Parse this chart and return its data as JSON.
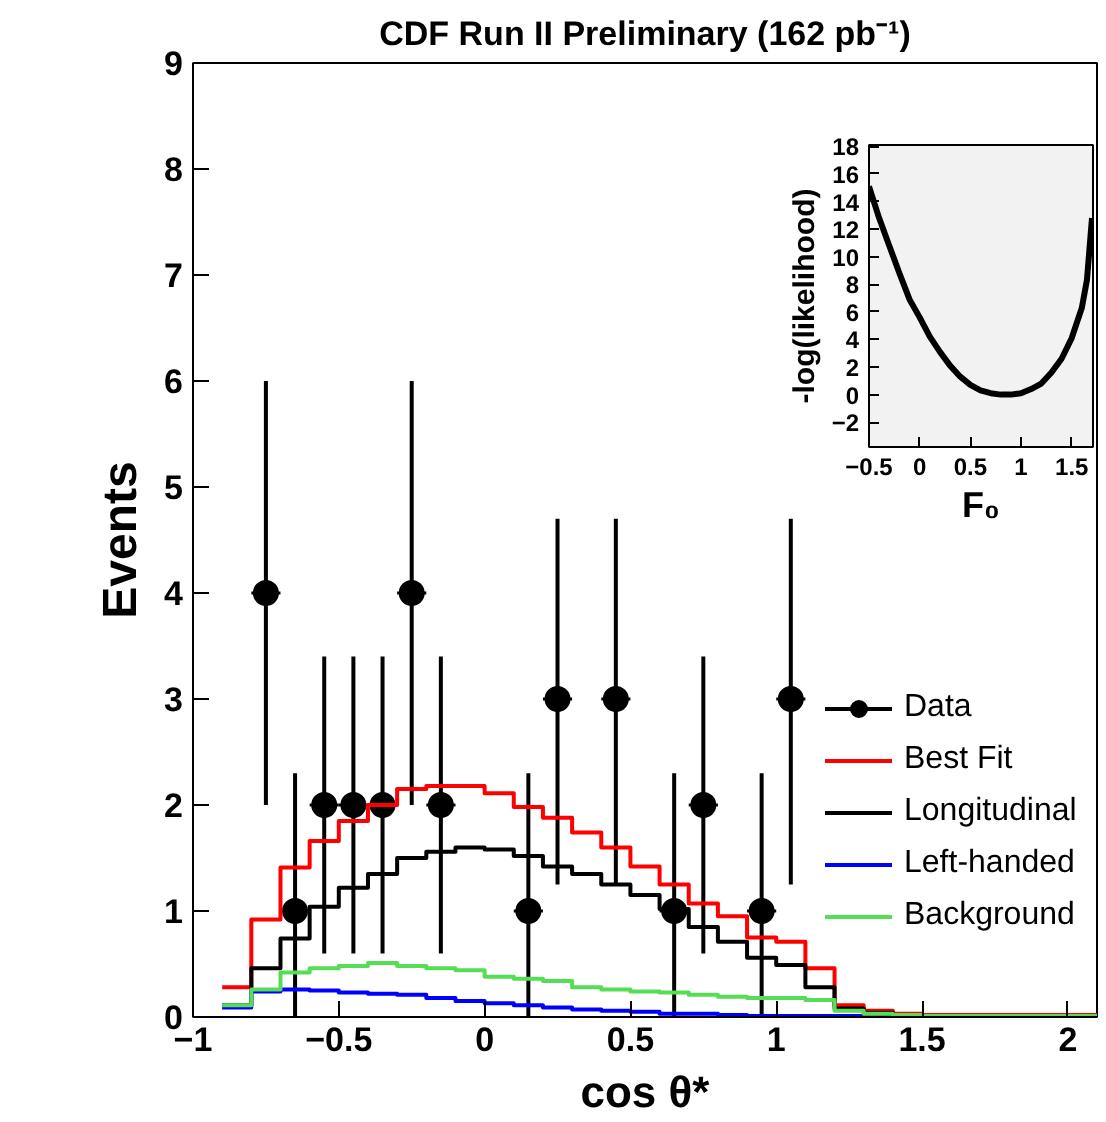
{
  "chart_data": [
    {
      "type": "histogram",
      "title": "CDF Run II Preliminary (162 pb⁻¹)",
      "xlabel": "cos θ*",
      "ylabel": "Events",
      "bins": [
        -0.9,
        -0.8,
        -0.7,
        -0.6,
        -0.5,
        -0.4,
        -0.3,
        -0.2,
        -0.1,
        0,
        0.1,
        0.2,
        0.3,
        0.4,
        0.5,
        0.6,
        0.7,
        0.8,
        0.9,
        1.0,
        1.1,
        1.2,
        1.3,
        1.4,
        1.5,
        1.6,
        1.7,
        1.8,
        1.9,
        2.0,
        2.1
      ],
      "series": [
        {
          "type": "scatter",
          "name": "Data",
          "color": "#000000",
          "marker": "circle",
          "x": [
            -0.75,
            -0.65,
            -0.55,
            -0.45,
            -0.35,
            -0.25,
            -0.15,
            0.15,
            0.25,
            0.45,
            0.65,
            0.75,
            0.95,
            1.05
          ],
          "values": [
            4,
            1,
            2,
            2,
            2,
            4,
            2,
            1,
            3,
            3,
            1,
            2,
            1,
            3
          ],
          "errors": [
            [
              2.0,
              6.0
            ],
            [
              0,
              2.3
            ],
            [
              0.6,
              3.4
            ],
            [
              0.6,
              3.4
            ],
            [
              0.6,
              3.4
            ],
            [
              2.0,
              6.0
            ],
            [
              0.6,
              3.4
            ],
            [
              0,
              2.3
            ],
            [
              1.25,
              4.7
            ],
            [
              1.25,
              4.7
            ],
            [
              0,
              2.3
            ],
            [
              0.6,
              3.4
            ],
            [
              0,
              2.3
            ],
            [
              1.25,
              4.7
            ]
          ],
          "xerrors": [
            0.05,
            0.05,
            0.05,
            0.05,
            0.05,
            0.05,
            0.05,
            0.05,
            0.05,
            0.05,
            0.05,
            0.05,
            0.05,
            0.05
          ]
        },
        {
          "name": "Best Fit",
          "color": "#ff0000",
          "values": [
            0.28,
            0.92,
            1.41,
            1.66,
            1.85,
            2.0,
            2.15,
            2.18,
            2.18,
            2.11,
            1.98,
            1.88,
            1.74,
            1.6,
            1.42,
            1.25,
            1.07,
            0.95,
            0.75,
            0.71,
            0.46,
            0.11,
            0.06,
            0.03,
            0.02,
            0.02,
            0.02,
            0.02,
            0.02,
            0.02
          ]
        },
        {
          "name": "Longitudinal",
          "color": "#000000",
          "values": [
            0.11,
            0.46,
            0.74,
            1.04,
            1.22,
            1.35,
            1.5,
            1.56,
            1.6,
            1.58,
            1.52,
            1.42,
            1.35,
            1.25,
            1.15,
            1.02,
            0.85,
            0.71,
            0.56,
            0.49,
            0.28,
            0.08,
            0.04,
            0.02,
            0.01,
            0.01,
            0.01,
            0.01,
            0.01,
            0.01
          ]
        },
        {
          "name": "Left-handed",
          "color": "#0000ff",
          "values": [
            0.09,
            0.24,
            0.26,
            0.25,
            0.23,
            0.22,
            0.21,
            0.18,
            0.15,
            0.13,
            0.11,
            0.09,
            0.07,
            0.06,
            0.05,
            0.03,
            0.03,
            0.02,
            0.01,
            0.01,
            0.01,
            0.01,
            0,
            0,
            0,
            0,
            0,
            0,
            0,
            0
          ]
        },
        {
          "name": "Background",
          "color": "#55dd55",
          "values": [
            0.11,
            0.26,
            0.42,
            0.46,
            0.48,
            0.51,
            0.48,
            0.46,
            0.44,
            0.38,
            0.36,
            0.34,
            0.28,
            0.26,
            0.24,
            0.23,
            0.21,
            0.19,
            0.18,
            0.18,
            0.16,
            0.06,
            0.03,
            0.02,
            0.01,
            0.01,
            0.01,
            0.01,
            0.01,
            0.01
          ]
        }
      ],
      "xlim": [
        -1,
        2.1
      ],
      "ylim": [
        0,
        9
      ],
      "xticks": [
        -1,
        -0.5,
        0,
        0.5,
        1,
        1.5,
        2
      ],
      "yticks": [
        0,
        1,
        2,
        3,
        4,
        5,
        6,
        7,
        8,
        9
      ],
      "legend": "right",
      "grid": false
    },
    {
      "type": "line",
      "xlabel": "F₀",
      "ylabel": "-log(likelihood)",
      "color": "#000000",
      "x": [
        -0.5,
        -0.4,
        -0.3,
        -0.2,
        -0.1,
        0,
        0.1,
        0.2,
        0.3,
        0.4,
        0.5,
        0.6,
        0.7,
        0.8,
        0.9,
        1.0,
        1.1,
        1.2,
        1.3,
        1.4,
        1.5,
        1.6,
        1.65,
        1.7
      ],
      "values": [
        15.1,
        12.8,
        10.8,
        8.8,
        6.9,
        5.6,
        4.2,
        3.1,
        2.1,
        1.3,
        0.7,
        0.3,
        0.1,
        0,
        0,
        0.1,
        0.4,
        0.8,
        1.6,
        2.6,
        4.1,
        6.3,
        8.3,
        12.8
      ],
      "xlim": [
        -0.5,
        1.71
      ],
      "ylim": [
        -3.8,
        18.1
      ],
      "xticks": [
        -0.5,
        0,
        0.5,
        1,
        1.5
      ],
      "yticks": [
        -2,
        0,
        2,
        4,
        6,
        8,
        10,
        12,
        14,
        16,
        18
      ],
      "grid": false
    }
  ]
}
